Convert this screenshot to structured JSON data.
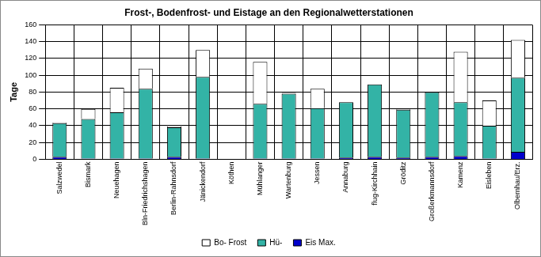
{
  "chart_data": {
    "type": "bar",
    "title": "Frost-, Bodenfrost- und Eistage an den Regionalwetterstationen",
    "y_label": "Tage",
    "categories": [
      "Salzwedel",
      "Bismark",
      "Neuehagen",
      "Bln-Friedrichshagen",
      "Berlin-Rahnsdorf",
      "Jänickendorf",
      "Köthen",
      "Mühlanger",
      "Wartenburg",
      "Jessen",
      "Annaburg",
      "flug-Kirchhain",
      "Gröditz",
      "Großerkmannsdorf",
      "Kamenz",
      "Eisleben",
      "Olbernhau/Erz."
    ],
    "series": [
      {
        "name": "Bo- Frost",
        "color": "#ffffff",
        "values": [
          1,
          12,
          29,
          24,
          1,
          32,
          0,
          50,
          1,
          23,
          0,
          0,
          1,
          0,
          60,
          30,
          45
        ]
      },
      {
        "name": "Hü-",
        "color": "#33b3a6",
        "values": [
          40,
          47,
          55,
          83,
          35,
          97,
          0,
          65,
          77,
          60,
          66,
          86,
          57,
          77,
          64,
          39,
          88
        ]
      },
      {
        "name": "Eis Max.",
        "color": "#0000cc",
        "values": [
          3,
          1,
          1,
          1,
          3,
          1,
          0,
          1,
          1,
          1,
          2,
          3,
          2,
          3,
          4,
          1,
          9
        ]
      }
    ],
    "stacked": true,
    "ylim": [
      0,
      160
    ],
    "yticks": [
      0,
      20,
      40,
      60,
      80,
      100,
      120,
      140,
      160
    ],
    "grid": true,
    "legend": "bottom"
  }
}
